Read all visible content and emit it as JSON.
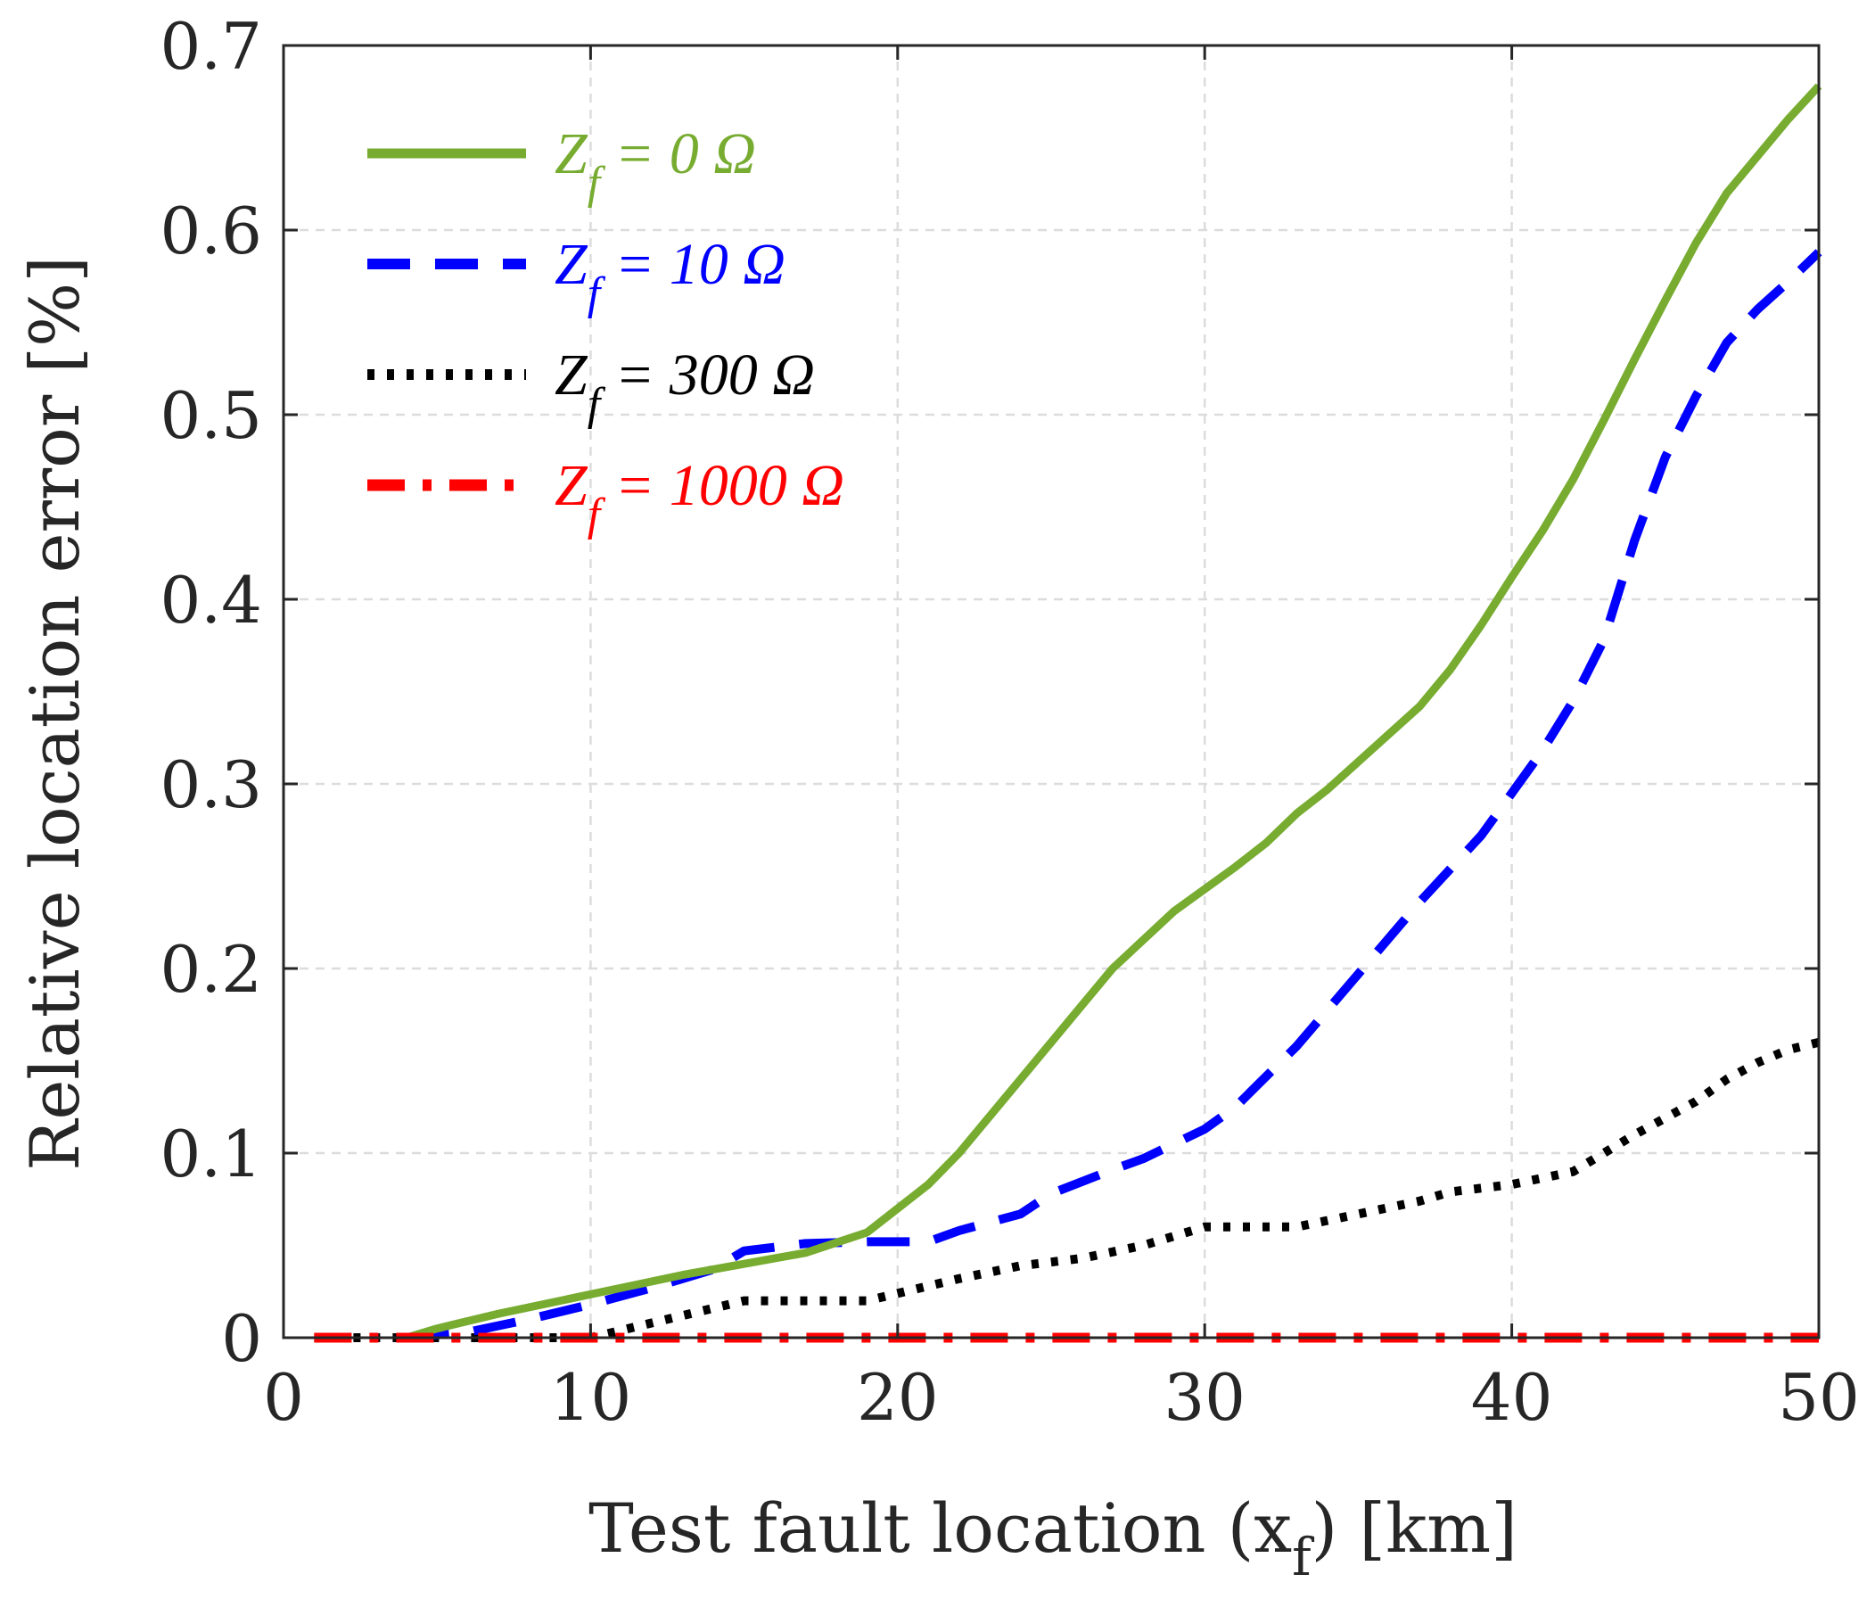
{
  "chart_data": {
    "type": "line",
    "title": "",
    "xlabel_main": "Test fault location (x",
    "xlabel_sub": "f",
    "xlabel_tail": ") [km]",
    "ylabel": "Relative location error [%]",
    "xlim": [
      0,
      50
    ],
    "ylim": [
      0,
      0.7
    ],
    "xticks": [
      "0",
      "10",
      "20",
      "30",
      "40",
      "50"
    ],
    "yticks": [
      "0",
      "0.1",
      "0.2",
      "0.3",
      "0.4",
      "0.5",
      "0.6",
      "0.7"
    ],
    "grid": true,
    "legend_position": "top-left",
    "series": [
      {
        "name": "Zf = 0 Ω",
        "legend_parts": [
          "Z",
          "f",
          " = 0 Ω"
        ],
        "color": "#77ac30",
        "style": "solid",
        "x": [
          4,
          5,
          7,
          9,
          11,
          13,
          15,
          17,
          19,
          21,
          22,
          24,
          26,
          27,
          29,
          31,
          32,
          33,
          34,
          35,
          37,
          38,
          39,
          40,
          41,
          42,
          43,
          44,
          45,
          46,
          47,
          48,
          49,
          50
        ],
        "y": [
          0,
          0.005,
          0.013,
          0.02,
          0.027,
          0.034,
          0.04,
          0.046,
          0.057,
          0.083,
          0.1,
          0.14,
          0.18,
          0.2,
          0.231,
          0.255,
          0.268,
          0.284,
          0.297,
          0.312,
          0.342,
          0.362,
          0.386,
          0.412,
          0.437,
          0.465,
          0.497,
          0.53,
          0.562,
          0.593,
          0.62,
          0.64,
          0.66,
          0.678
        ]
      },
      {
        "name": "Zf = 10 Ω",
        "legend_parts": [
          "Z",
          "f",
          " = 10 Ω"
        ],
        "color": "#0000ff",
        "style": "dashed",
        "x": [
          4,
          6,
          8,
          10,
          12,
          14,
          15,
          17,
          19,
          21,
          22,
          24,
          25,
          27,
          28,
          30,
          31,
          33,
          35,
          37,
          39,
          40,
          41,
          42,
          43,
          44,
          45,
          46,
          47,
          48,
          49,
          50
        ],
        "y": [
          0,
          0.003,
          0.01,
          0.018,
          0.027,
          0.037,
          0.047,
          0.051,
          0.052,
          0.052,
          0.058,
          0.067,
          0.078,
          0.091,
          0.097,
          0.113,
          0.125,
          0.158,
          0.197,
          0.236,
          0.272,
          0.295,
          0.318,
          0.345,
          0.378,
          0.432,
          0.477,
          0.51,
          0.539,
          0.557,
          0.572,
          0.588
        ]
      },
      {
        "name": "Zf = 300 Ω",
        "legend_parts": [
          "Z",
          "f",
          " = 300 Ω"
        ],
        "color": "#000000",
        "style": "dotted",
        "x": [
          1,
          10,
          12,
          14,
          15,
          17,
          19,
          21,
          22,
          24,
          26,
          28,
          30,
          31,
          33,
          35,
          37,
          38,
          40,
          42,
          43,
          44,
          46,
          47,
          48,
          49,
          50
        ],
        "y": [
          0,
          0,
          0.008,
          0.016,
          0.02,
          0.02,
          0.02,
          0.028,
          0.032,
          0.039,
          0.043,
          0.05,
          0.06,
          0.06,
          0.06,
          0.067,
          0.074,
          0.079,
          0.083,
          0.09,
          0.1,
          0.11,
          0.128,
          0.14,
          0.149,
          0.156,
          0.16
        ]
      },
      {
        "name": "Zf = 1000 Ω",
        "legend_parts": [
          "Z",
          "f",
          " = 1000 Ω"
        ],
        "color": "#ff0000",
        "style": "dashdot",
        "x": [
          1,
          50
        ],
        "y": [
          0,
          0
        ]
      }
    ]
  }
}
